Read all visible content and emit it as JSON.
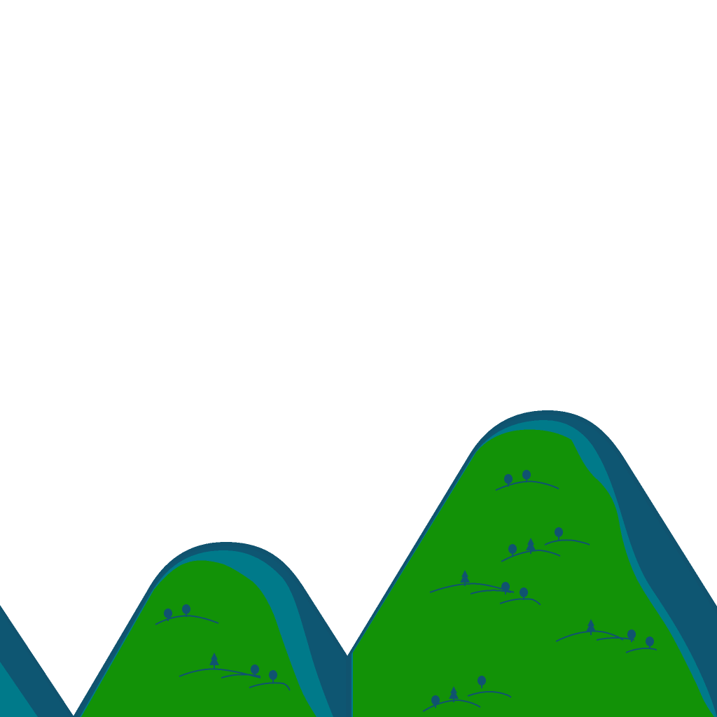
{
  "scene": {
    "kind": "pixel-art parallax hills background",
    "sky_color": "#ffffff",
    "hill_outline_color": "#10536f",
    "hill_shadow_color": "#0e5672",
    "hill_rim_color": "#007a8a",
    "hill_grass_color": "#129207",
    "tree_color": "#10536f",
    "hills": [
      {
        "name": "left-edge-hill",
        "tree_count": 0
      },
      {
        "name": "middle-hill",
        "tree_count": 6
      },
      {
        "name": "right-hill",
        "tree_count": 16
      }
    ]
  }
}
